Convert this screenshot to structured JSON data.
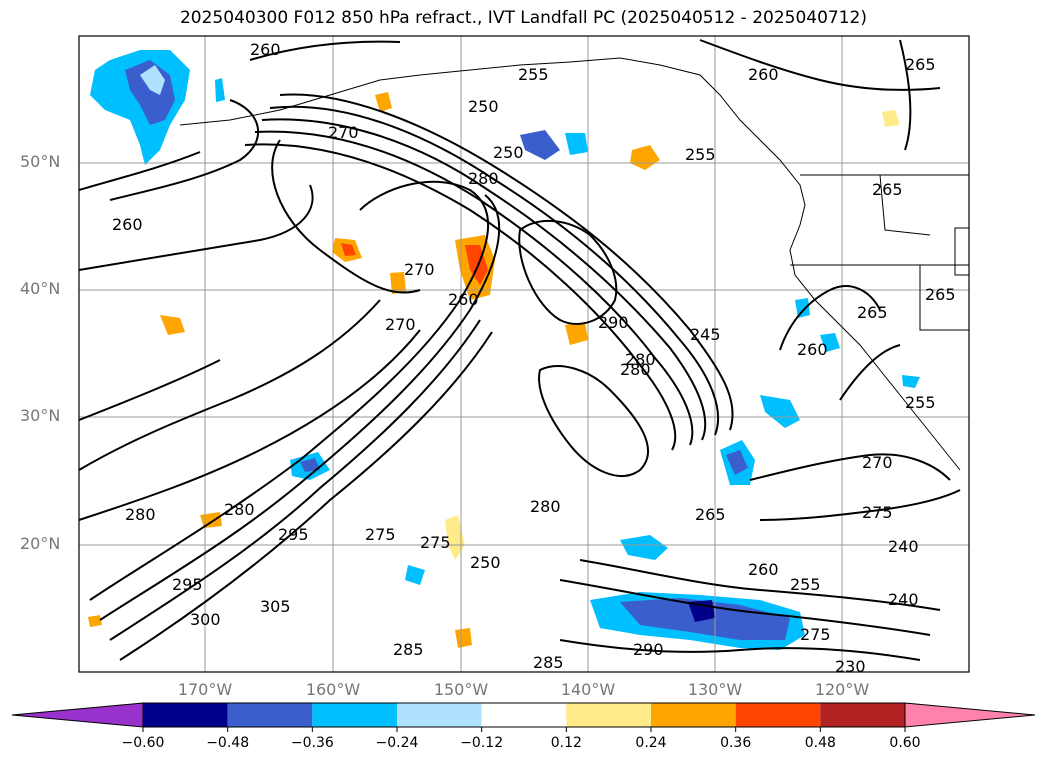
{
  "title": "2025040300 F012 850 hPa refract., IVT Landfall PC (2025040512 - 2025040712)",
  "lat_labels": [
    "50°N",
    "40°N",
    "30°N",
    "20°N"
  ],
  "lon_labels": [
    "170°W",
    "160°W",
    "150°W",
    "140°W",
    "130°W",
    "120°W"
  ],
  "colorbar": {
    "ticks": [
      "−0.60",
      "−0.48",
      "−0.36",
      "−0.24",
      "−0.12",
      "0.12",
      "0.24",
      "0.36",
      "0.48",
      "0.60"
    ],
    "colors": [
      "#9932cc",
      "#00008b",
      "#3a5fcd",
      "#00bfff",
      "#b0e2ff",
      "#ffffff",
      "#ffeb8a",
      "#ffa500",
      "#ff4500",
      "#b22222",
      "#ff82ab"
    ]
  },
  "contour_labels": [
    "260",
    "255",
    "260",
    "265",
    "250",
    "270",
    "250",
    "255",
    "280",
    "260",
    "265",
    "270",
    "260",
    "280",
    "290",
    "270",
    "280",
    "245",
    "275",
    "270",
    "265",
    "255",
    "260",
    "280",
    "280",
    "295",
    "280",
    "275",
    "285",
    "265",
    "260",
    "290",
    "295",
    "300",
    "305",
    "240",
    "240",
    "255",
    "230",
    "250",
    "275",
    "285",
    "270",
    "265"
  ]
}
